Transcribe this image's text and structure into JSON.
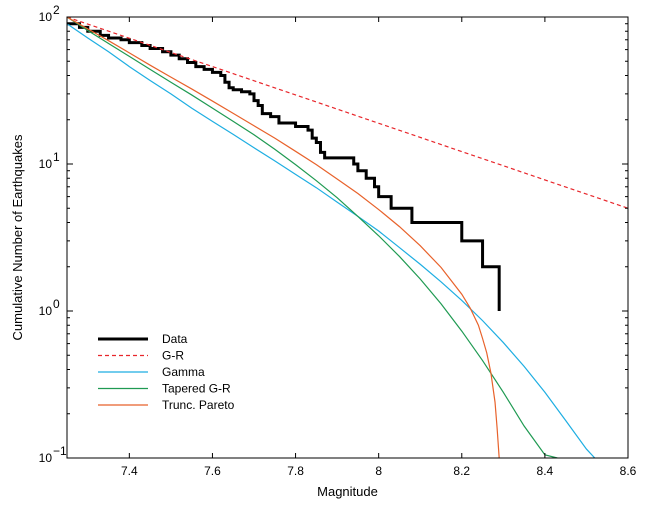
{
  "chart_data": {
    "type": "line",
    "title": "",
    "xlabel": "Magnitude",
    "ylabel": "Cumulative Number of Earthquakes",
    "xlim": [
      7.25,
      8.6
    ],
    "ylim": [
      0.1,
      100
    ],
    "yscale": "log",
    "grid": false,
    "legend_position": "bottom-left",
    "x_ticks": [
      "7.4",
      "7.6",
      "7.8",
      "8",
      "8.2",
      "8.4",
      "8.6"
    ],
    "y_ticks": [
      {
        "base": "10",
        "exp": "−1"
      },
      {
        "base": "10",
        "exp": "0"
      },
      {
        "base": "10",
        "exp": "1"
      },
      {
        "base": "10",
        "exp": "2"
      }
    ],
    "series": [
      {
        "name": "Data",
        "style": "step",
        "color": "#000000",
        "x": [
          7.25,
          7.28,
          7.3,
          7.33,
          7.35,
          7.38,
          7.4,
          7.43,
          7.45,
          7.48,
          7.5,
          7.52,
          7.54,
          7.56,
          7.58,
          7.6,
          7.62,
          7.63,
          7.64,
          7.65,
          7.67,
          7.69,
          7.7,
          7.71,
          7.72,
          7.74,
          7.76,
          7.8,
          7.83,
          7.84,
          7.85,
          7.86,
          7.87,
          7.94,
          7.95,
          7.97,
          7.99,
          8.0,
          8.03,
          8.08,
          8.2,
          8.25,
          8.29
        ],
        "y": [
          90,
          85,
          80,
          75,
          72,
          70,
          67,
          64,
          61,
          58,
          55,
          52,
          49,
          46,
          44,
          42,
          40,
          36,
          33,
          32,
          31,
          30,
          27,
          25,
          22,
          21,
          19,
          18,
          17,
          15,
          14,
          12,
          11,
          10,
          9,
          8,
          7,
          6,
          5,
          4,
          3,
          2,
          1
        ]
      },
      {
        "name": "G-R",
        "style": "dashed",
        "color": "#e8262b",
        "x": [
          7.25,
          8.6
        ],
        "y": [
          100,
          5.0
        ]
      },
      {
        "name": "Gamma",
        "style": "solid",
        "color": "#1eaee2",
        "x": [
          7.25,
          7.3,
          7.35,
          7.4,
          7.45,
          7.5,
          7.55,
          7.6,
          7.65,
          7.7,
          7.75,
          7.8,
          7.85,
          7.9,
          7.95,
          8.0,
          8.05,
          8.1,
          8.15,
          8.2,
          8.25,
          8.3,
          8.35,
          8.4,
          8.45,
          8.5,
          8.52
        ],
        "y": [
          90,
          72,
          58,
          46,
          37,
          30,
          24,
          19.5,
          15.9,
          12.9,
          10.5,
          8.5,
          6.9,
          5.5,
          4.4,
          3.5,
          2.7,
          2.08,
          1.58,
          1.18,
          0.86,
          0.61,
          0.42,
          0.28,
          0.18,
          0.115,
          0.1
        ]
      },
      {
        "name": "Tapered G-R",
        "style": "solid",
        "color": "#1f9a52",
        "x": [
          7.25,
          7.3,
          7.35,
          7.4,
          7.45,
          7.5,
          7.55,
          7.6,
          7.65,
          7.7,
          7.75,
          7.8,
          7.85,
          7.9,
          7.95,
          8.0,
          8.05,
          8.1,
          8.15,
          8.2,
          8.25,
          8.3,
          8.35,
          8.4,
          8.43
        ],
        "y": [
          100,
          81,
          66,
          54,
          44,
          36,
          29.5,
          24,
          19.5,
          15.8,
          12.6,
          9.9,
          7.7,
          5.9,
          4.4,
          3.25,
          2.35,
          1.65,
          1.12,
          0.73,
          0.46,
          0.28,
          0.165,
          0.105,
          0.1
        ]
      },
      {
        "name": "Trunc. Pareto",
        "style": "solid",
        "color": "#e8622b",
        "x": [
          7.25,
          7.3,
          7.35,
          7.4,
          7.45,
          7.5,
          7.55,
          7.6,
          7.65,
          7.7,
          7.75,
          7.8,
          7.85,
          7.9,
          7.95,
          8.0,
          8.05,
          8.1,
          8.15,
          8.2,
          8.22,
          8.24,
          8.25,
          8.26,
          8.27,
          8.28,
          8.285,
          8.29
        ],
        "y": [
          100,
          83,
          69,
          57,
          47,
          39,
          32.4,
          26.8,
          22.1,
          18.2,
          15.0,
          12.2,
          9.9,
          7.9,
          6.3,
          4.9,
          3.75,
          2.78,
          1.98,
          1.3,
          1.05,
          0.8,
          0.65,
          0.52,
          0.38,
          0.24,
          0.16,
          0.1
        ]
      }
    ]
  }
}
